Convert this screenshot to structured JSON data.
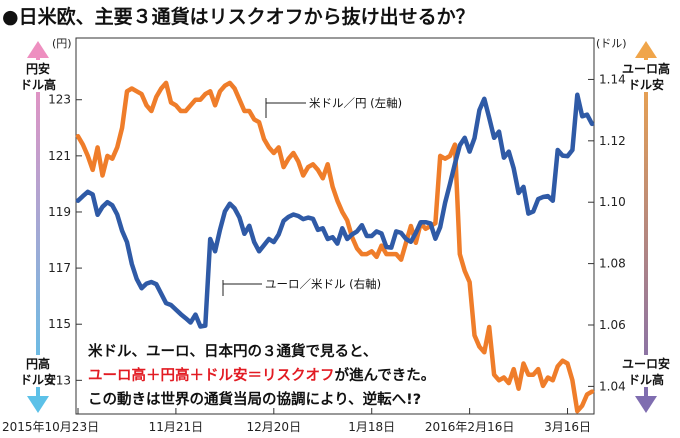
{
  "chart_data": {
    "type": "line",
    "title": "●日米欧、主要３通貨はリスクオフから抜け出せるか？",
    "left_axis": {
      "unit": "(円)",
      "ticks": [
        113,
        115,
        117,
        119,
        121,
        123
      ],
      "ylim": [
        111.8,
        125.2
      ],
      "top_label": [
        "円安",
        "ドル高"
      ],
      "bottom_label": [
        "円高",
        "ドル安"
      ]
    },
    "right_axis": {
      "unit": "(ドル)",
      "ticks_text": [
        "1.04",
        "1.06",
        "1.08",
        "1.10",
        "1.12",
        "1.14"
      ],
      "ticks": [
        1.04,
        1.06,
        1.08,
        1.1,
        1.12,
        1.14
      ],
      "ylim": [
        1.031,
        1.1535
      ],
      "top_label": [
        "ユーロ高",
        "ドル安"
      ],
      "bottom_label": [
        "ユーロ安",
        "ドル高"
      ]
    },
    "x_ticks": [
      {
        "i": 0,
        "label": "2015年10月23日"
      },
      {
        "i": 20,
        "label": "11月21日"
      },
      {
        "i": 40,
        "label": "12月20日"
      },
      {
        "i": 60,
        "label": "1月18日"
      },
      {
        "i": 80,
        "label": "2016年2月16日"
      },
      {
        "i": 100,
        "label": "3月16日"
      }
    ],
    "n_points": 106,
    "series": [
      {
        "name": "米ドル／円 (左軸)",
        "axis": "left",
        "color": "#ef7d2a",
        "values": [
          121.7,
          121.4,
          121.0,
          120.5,
          121.3,
          120.3,
          121.0,
          120.9,
          121.3,
          122.0,
          123.3,
          123.4,
          123.3,
          123.2,
          122.8,
          122.6,
          123.1,
          123.4,
          123.6,
          122.9,
          122.8,
          122.6,
          122.6,
          122.8,
          123.0,
          123.0,
          123.2,
          123.3,
          122.8,
          123.3,
          123.5,
          123.6,
          123.4,
          123.0,
          122.6,
          122.6,
          122.3,
          122.2,
          121.6,
          121.3,
          121.1,
          121.3,
          120.6,
          120.9,
          121.1,
          120.8,
          120.3,
          120.6,
          120.7,
          120.5,
          120.2,
          120.7,
          119.9,
          119.4,
          119.0,
          118.7,
          118.1,
          117.7,
          117.5,
          117.5,
          117.6,
          117.4,
          117.8,
          117.5,
          117.5,
          117.5,
          117.3,
          117.9,
          118.5,
          117.9,
          118.6,
          118.4,
          118.5,
          118.6,
          121.0,
          120.9,
          121.0,
          121.4,
          117.5,
          116.9,
          116.5,
          114.6,
          114.2,
          114.0,
          114.9,
          113.2,
          113.0,
          113.1,
          112.9,
          113.4,
          112.7,
          113.6,
          113.2,
          113.2,
          113.4,
          112.8,
          113.1,
          113.0,
          113.5,
          113.7,
          113.6,
          113.0,
          111.9,
          112.1,
          112.5,
          112.6
        ]
      },
      {
        "name": "ユーロ／米ドル (右軸)",
        "axis": "right",
        "color": "#2f5aa6",
        "values": [
          1.1005,
          1.102,
          1.1034,
          1.1025,
          1.0959,
          1.0985,
          1.1,
          1.099,
          1.096,
          1.0907,
          1.087,
          1.0799,
          1.075,
          1.072,
          1.0735,
          1.074,
          1.0733,
          1.0702,
          1.0671,
          1.0665,
          1.065,
          1.0635,
          1.0622,
          1.0608,
          1.0634,
          1.0595,
          1.0598,
          1.088,
          1.084,
          1.091,
          1.097,
          1.0995,
          1.098,
          1.095,
          1.0897,
          1.0923,
          1.087,
          1.084,
          1.086,
          1.088,
          1.087,
          1.0895,
          1.0939,
          1.0952,
          1.096,
          1.0955,
          1.0945,
          1.095,
          1.0946,
          1.091,
          1.0915,
          1.088,
          1.0886,
          1.0865,
          1.0915,
          1.088,
          1.0895,
          1.0905,
          1.0925,
          1.089,
          1.089,
          1.0905,
          1.0898,
          1.0854,
          1.0852,
          1.0905,
          1.09,
          1.088,
          1.0871,
          1.09,
          1.0935,
          1.0935,
          1.0931,
          1.0881,
          1.0919,
          1.0998,
          1.106,
          1.1125,
          1.1185,
          1.121,
          1.1165,
          1.1209,
          1.13,
          1.1337,
          1.1275,
          1.121,
          1.123,
          1.1145,
          1.1165,
          1.111,
          1.103,
          1.105,
          1.0963,
          1.097,
          1.101,
          1.1017,
          1.102,
          1.1005,
          1.117,
          1.1152,
          1.115,
          1.117,
          1.135,
          1.128,
          1.1285,
          1.1255
        ]
      }
    ],
    "series_labels": [
      {
        "name": "usd-jpy-series-label",
        "text": "米ドル／円 (左軸)"
      },
      {
        "name": "eur-usd-series-label",
        "text": "ユーロ／米ドル (右軸)"
      }
    ],
    "annotation": {
      "line1": "米ドル、ユーロ、日本円の３通貨で見ると、",
      "line2_red": "ユーロ高＋円高＋ドル安＝リスクオフ",
      "line2_rest": "が進んできた。",
      "line3": "この動きは世界の通貨当局の協調により、逆転へ!?"
    },
    "colors": {
      "usd_jpy": "#ef7d2a",
      "eur_usd": "#2f5aa6",
      "left_top_arrow": "#ee8fc0",
      "left_bottom_arrow": "#5cc1e8",
      "right_top_arrow": "#f0a54a",
      "right_bottom_arrow": "#7f6db0",
      "highlight": "#e21b23"
    }
  }
}
